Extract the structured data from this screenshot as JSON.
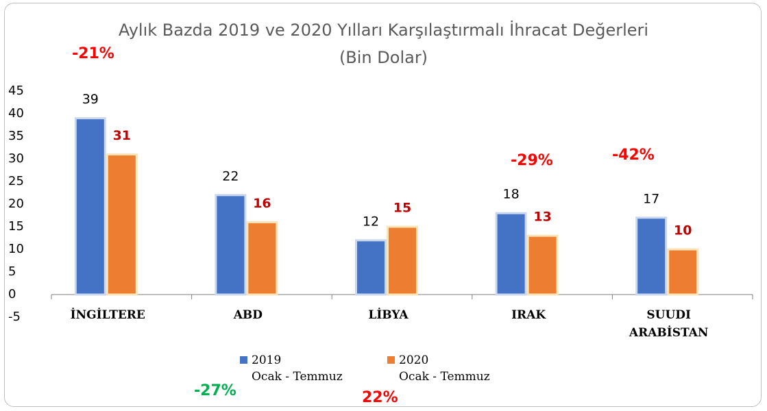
{
  "chart_data": {
    "type": "bar",
    "title": "Aylık Bazda 2019 ve 2020 Yılları Karşılaştırmalı İhracat Değerleri",
    "subtitle": "(Bin Dolar)",
    "categories": [
      "İNGİLTERE",
      "ABD",
      "LİBYA",
      "IRAK",
      "SUUDI ARABİSTAN"
    ],
    "series": [
      {
        "name": "2019\nOcak - Temmuz",
        "color": "#4472c4",
        "label_color": "#000000",
        "values": [
          39,
          22,
          12,
          18,
          17
        ]
      },
      {
        "name": "2020\nOcak - Temmuz",
        "color": "#ed7d31",
        "label_color": "#c00000",
        "values": [
          31,
          16,
          15,
          13,
          10
        ]
      }
    ],
    "ylim": [
      -5,
      45
    ],
    "yticks": [
      -5,
      0,
      5,
      10,
      15,
      20,
      25,
      30,
      35,
      40,
      45
    ],
    "annotations": [
      {
        "text": "-21%",
        "color": "#ff0000"
      },
      {
        "text": "-29%",
        "color": "#ff0000"
      },
      {
        "text": "-42%",
        "color": "#ff0000"
      },
      {
        "text": "-27%",
        "color": "#00b050"
      },
      {
        "text": "22%",
        "color": "#ff0000"
      }
    ]
  }
}
